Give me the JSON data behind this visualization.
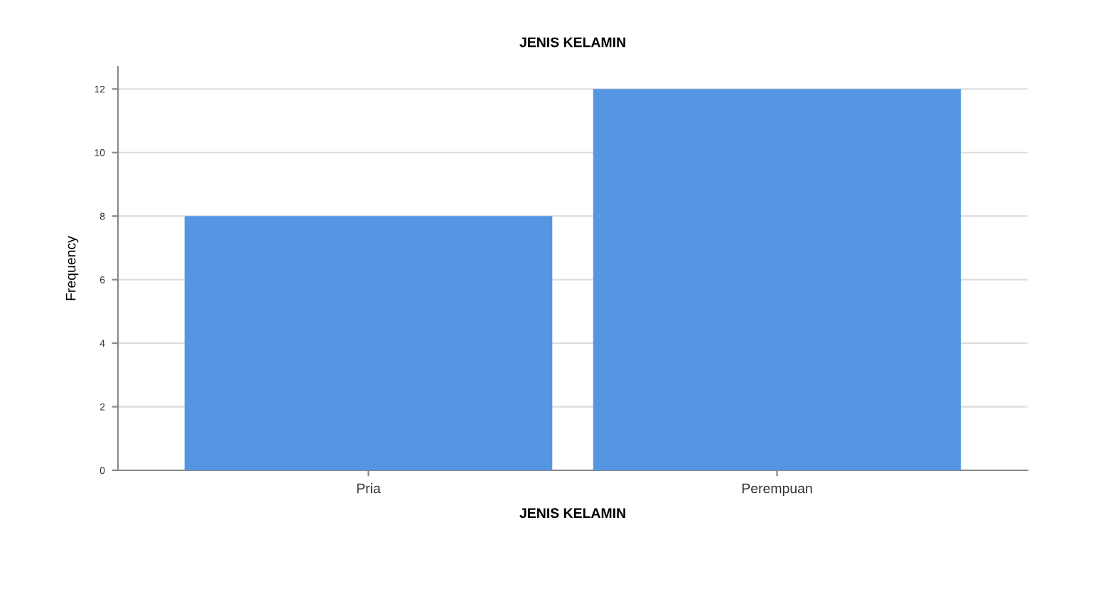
{
  "chart_data": {
    "type": "bar",
    "title": "JENIS KELAMIN",
    "xlabel": "JENIS KELAMIN",
    "ylabel": "Frequency",
    "categories": [
      "Pria",
      "Perempuan"
    ],
    "series": [
      {
        "color": "#5596e3",
        "values": [
          8,
          12
        ]
      }
    ],
    "ylim": [
      0,
      12.7
    ],
    "yticks": [
      0,
      2,
      4,
      6,
      8,
      10,
      12
    ],
    "grid": "y"
  }
}
